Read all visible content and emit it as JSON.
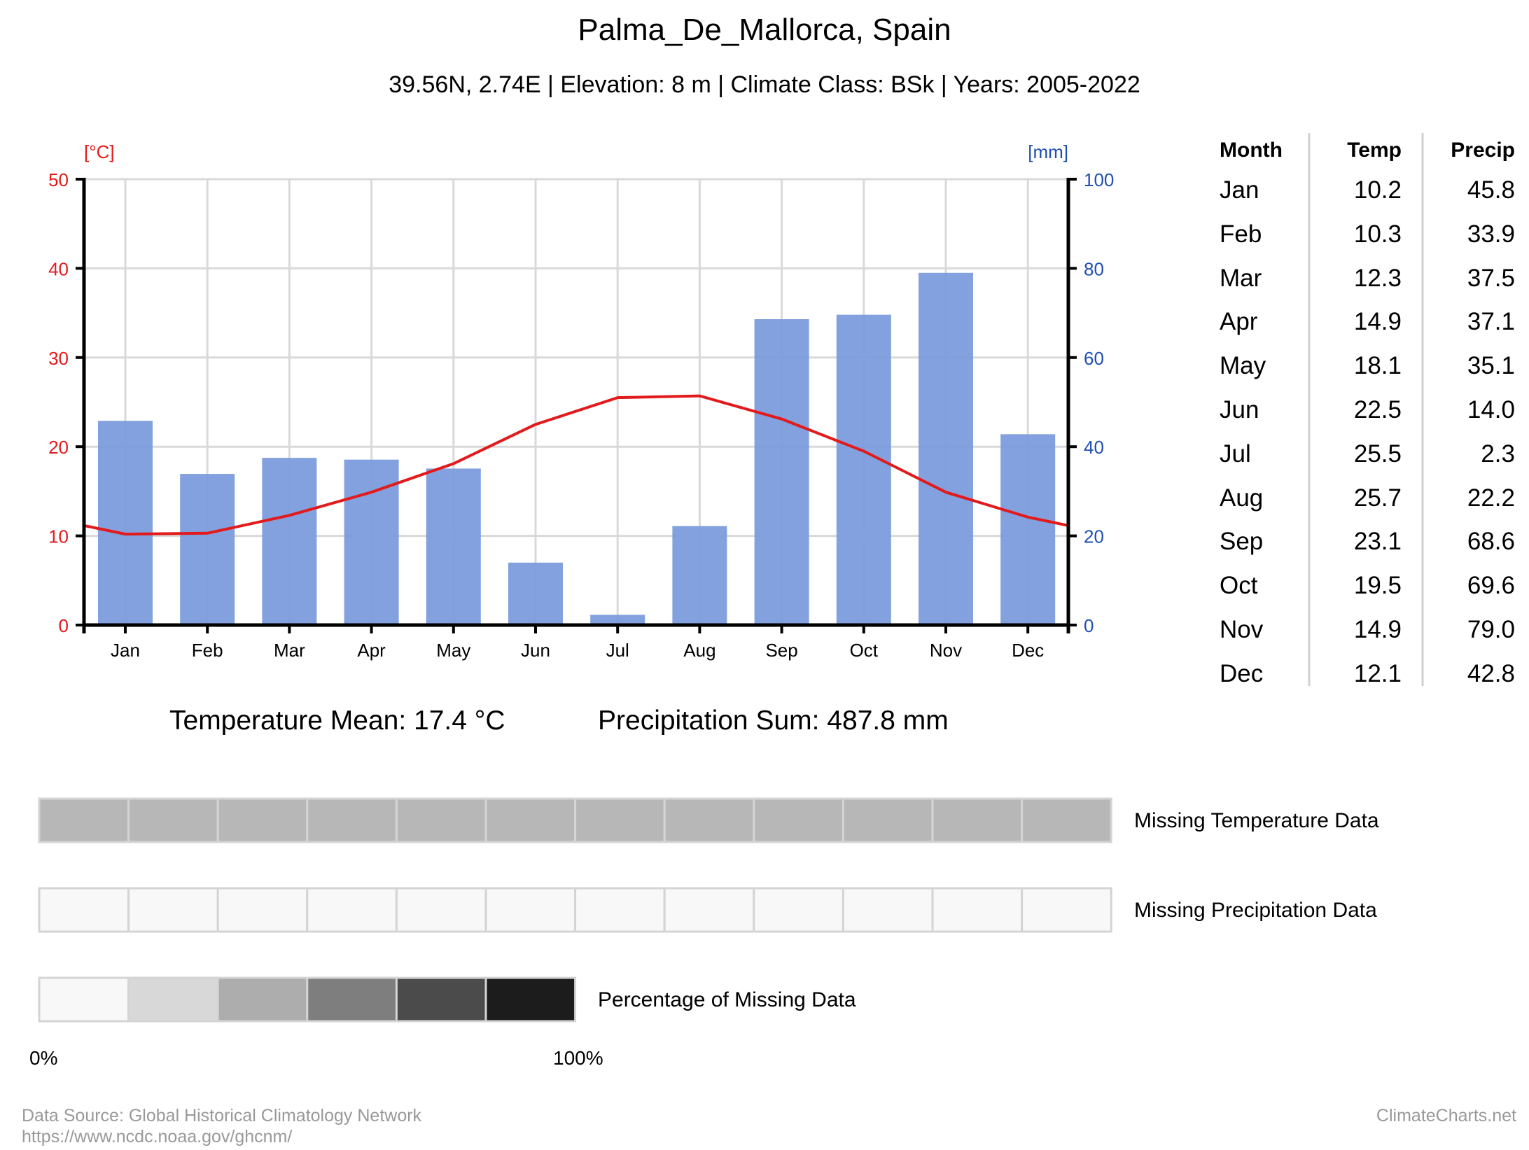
{
  "header": {
    "title": "Palma_De_Mallorca, Spain",
    "subtitle": "39.56N, 2.74E | Elevation: 8 m | Climate Class: BSk | Years: 2005-2022"
  },
  "colors": {
    "temp": "#e31a1c",
    "precip_bar": "#7b9cdc",
    "precip_axis": "#1f4fb0",
    "grid": "#d9d9d9"
  },
  "chart_data": {
    "type": "bar+line",
    "categories": [
      "Jan",
      "Feb",
      "Mar",
      "Apr",
      "May",
      "Jun",
      "Jul",
      "Aug",
      "Sep",
      "Oct",
      "Nov",
      "Dec"
    ],
    "series": [
      {
        "name": "Precipitation",
        "type": "bar",
        "axis": "right",
        "unit": "mm",
        "values": [
          45.8,
          33.9,
          37.5,
          37.1,
          35.1,
          14.0,
          2.3,
          22.2,
          68.6,
          69.6,
          79.0,
          42.8
        ]
      },
      {
        "name": "Temperature",
        "type": "line",
        "axis": "left",
        "unit": "°C",
        "values": [
          10.2,
          10.3,
          12.3,
          14.9,
          18.1,
          22.5,
          25.5,
          25.7,
          23.1,
          19.5,
          14.9,
          12.1
        ]
      }
    ],
    "left_axis": {
      "label": "[°C]",
      "range": [
        0,
        50
      ],
      "ticks": [
        "0",
        "10",
        "20",
        "30",
        "40",
        "50"
      ]
    },
    "right_axis": {
      "label": "[mm]",
      "range": [
        0,
        100
      ],
      "ticks": [
        "0",
        "20",
        "40",
        "60",
        "80",
        "100"
      ]
    },
    "grid": true
  },
  "table": {
    "headers": [
      "Month",
      "Temp",
      "Precip"
    ],
    "rows": [
      [
        "Jan",
        "10.2",
        "45.8"
      ],
      [
        "Feb",
        "10.3",
        "33.9"
      ],
      [
        "Mar",
        "12.3",
        "37.5"
      ],
      [
        "Apr",
        "14.9",
        "37.1"
      ],
      [
        "May",
        "18.1",
        "35.1"
      ],
      [
        "Jun",
        "22.5",
        "14.0"
      ],
      [
        "Jul",
        "25.5",
        "2.3"
      ],
      [
        "Aug",
        "25.7",
        "22.2"
      ],
      [
        "Sep",
        "23.1",
        "68.6"
      ],
      [
        "Oct",
        "19.5",
        "69.6"
      ],
      [
        "Nov",
        "14.9",
        "79.0"
      ],
      [
        "Dec",
        "12.1",
        "42.8"
      ]
    ]
  },
  "stats": {
    "temp_mean": "Temperature Mean: 17.4 °C",
    "precip_sum": "Precipitation Sum: 487.8 mm"
  },
  "missing": {
    "temp_label": "Missing Temperature Data",
    "precip_label": "Missing Precipitation Data",
    "legend_label": "Percentage of Missing Data",
    "temp_colors": [
      "#b7b7b7",
      "#b7b7b7",
      "#b7b7b7",
      "#b7b7b7",
      "#b7b7b7",
      "#b7b7b7",
      "#b7b7b7",
      "#b7b7b7",
      "#b7b7b7",
      "#b7b7b7",
      "#b7b7b7",
      "#b7b7b7"
    ],
    "precip_colors": [
      "#f8f8f8",
      "#f8f8f8",
      "#f8f8f8",
      "#f8f8f8",
      "#f8f8f8",
      "#f8f8f8",
      "#f8f8f8",
      "#f8f8f8",
      "#f8f8f8",
      "#f8f8f8",
      "#f8f8f8",
      "#f8f8f8"
    ],
    "legend_colors": [
      "#f8f8f8",
      "#d8d8d8",
      "#adadad",
      "#7e7e7e",
      "#4b4b4b",
      "#1c1c1c"
    ],
    "legend_min": "0%",
    "legend_max": "100%"
  },
  "footer": {
    "source": "Data Source: Global Historical Climatology Network",
    "url": "https://www.ncdc.noaa.gov/ghcnm/",
    "brand": "ClimateCharts.net"
  }
}
